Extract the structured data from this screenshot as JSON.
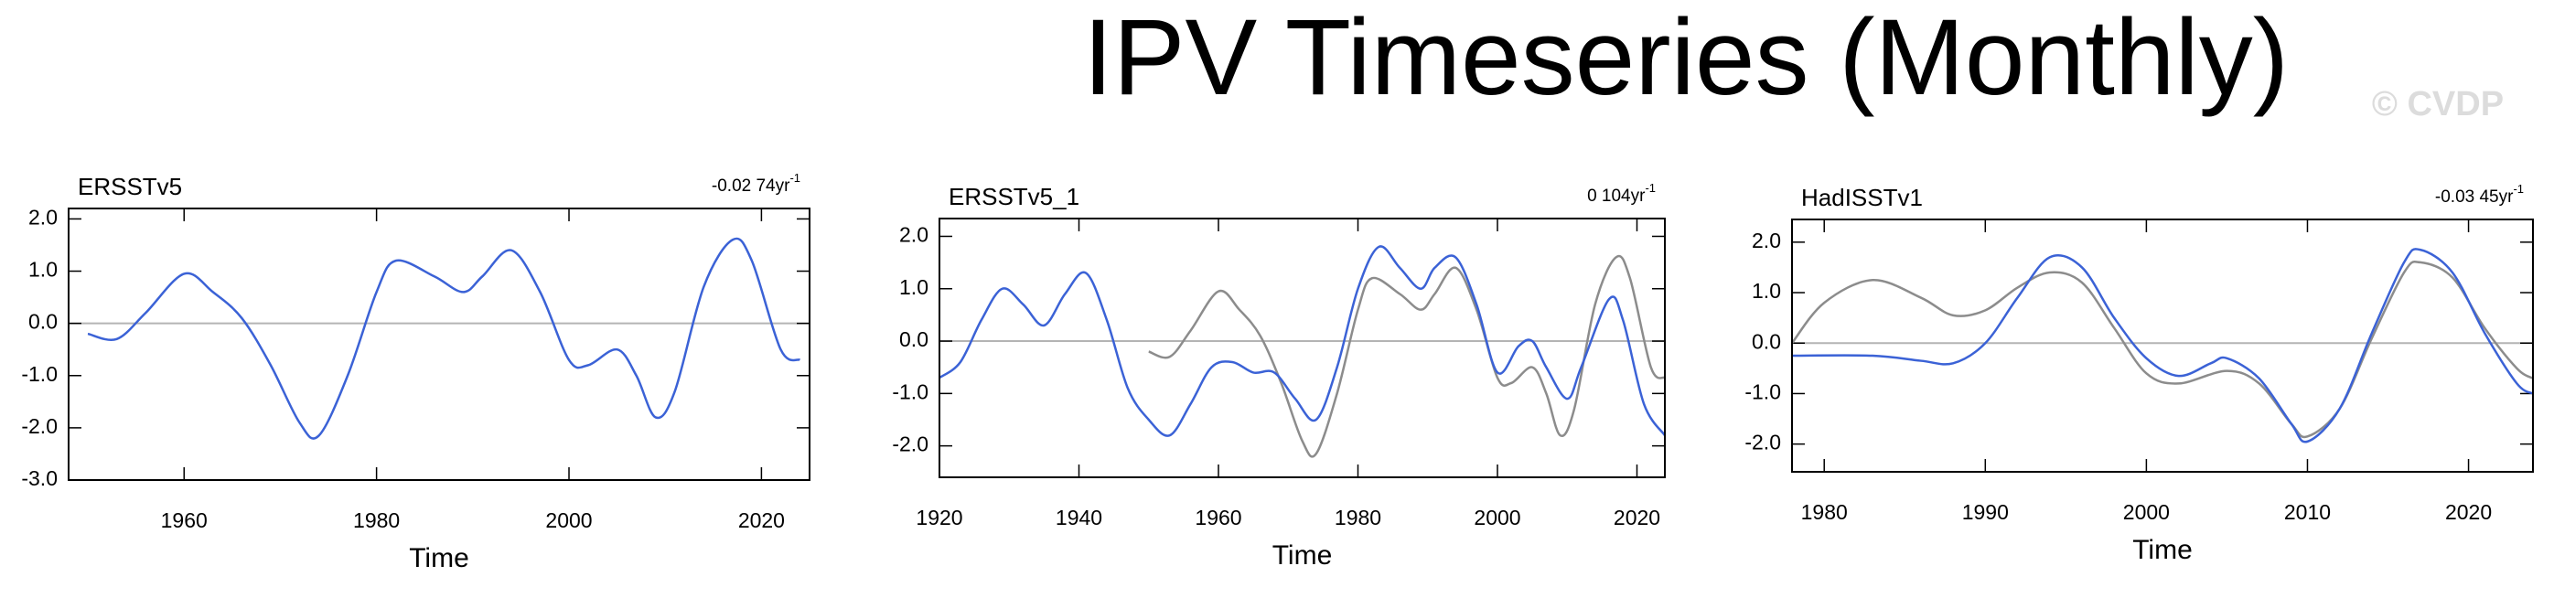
{
  "title": "IPV Timeseries (Monthly)",
  "watermark": "© CVDP",
  "chart_data": [
    {
      "type": "line",
      "title": "ERSSTv5",
      "trend": "-0.02 74yr",
      "trend_exp": "-1",
      "xlabel": "Time",
      "xlim": [
        1948,
        2025
      ],
      "xticks": [
        1960,
        1980,
        2000,
        2020
      ],
      "ylim": [
        -3,
        2.2
      ],
      "yticks": [
        {
          "value": 2,
          "label": "2.0"
        },
        {
          "value": 1,
          "label": "1.0"
        },
        {
          "value": 0,
          "label": "0.0"
        },
        {
          "value": -1,
          "label": "-1.0"
        },
        {
          "value": -2,
          "label": "-2.0"
        },
        {
          "value": -3,
          "label": "-3.0"
        }
      ],
      "zero_line": true,
      "series": [
        {
          "color": "#3b62d6",
          "x": [
            1950,
            1953,
            1956,
            1960,
            1963,
            1966,
            1969,
            1972,
            1974,
            1977,
            1980,
            1982,
            1986,
            1989,
            1991,
            1994,
            1997,
            2000,
            2002,
            2005,
            2007,
            2009,
            2011,
            2014,
            2017,
            2019,
            2022,
            2024
          ],
          "values": [
            -0.2,
            -0.3,
            0.2,
            0.95,
            0.6,
            0.1,
            -0.8,
            -1.9,
            -2.15,
            -1.0,
            0.6,
            1.2,
            0.9,
            0.6,
            0.9,
            1.4,
            0.6,
            -0.7,
            -0.8,
            -0.5,
            -1.0,
            -1.8,
            -1.3,
            0.7,
            1.6,
            1.2,
            -0.5,
            -0.7
          ]
        }
      ]
    },
    {
      "type": "line",
      "title": "ERSSTv5_1",
      "trend": "0 104yr",
      "trend_exp": "-1",
      "xlabel": "Time",
      "xlim": [
        1920,
        2024
      ],
      "xticks": [
        1920,
        1940,
        1960,
        1980,
        2000,
        2020
      ],
      "ylim": [
        -2.6,
        2.34
      ],
      "yticks": [
        {
          "value": 2,
          "label": "2.0"
        },
        {
          "value": 1,
          "label": "1.0"
        },
        {
          "value": 0,
          "label": "0.0"
        },
        {
          "value": -1,
          "label": "-1.0"
        },
        {
          "value": -2,
          "label": "-2.0"
        }
      ],
      "zero_line": true,
      "series": [
        {
          "color": "#8c8c8c",
          "x": [
            1950,
            1953,
            1956,
            1960,
            1963,
            1966,
            1969,
            1972,
            1974,
            1977,
            1980,
            1982,
            1986,
            1989,
            1991,
            1994,
            1997,
            2000,
            2002,
            2005,
            2007,
            2009,
            2011,
            2014,
            2017,
            2019,
            2022,
            2024
          ],
          "values": [
            -0.2,
            -0.3,
            0.2,
            0.95,
            0.6,
            0.1,
            -0.8,
            -1.9,
            -2.15,
            -1.0,
            0.6,
            1.2,
            0.9,
            0.6,
            0.9,
            1.4,
            0.6,
            -0.7,
            -0.8,
            -0.5,
            -1.0,
            -1.8,
            -1.3,
            0.7,
            1.6,
            1.2,
            -0.5,
            -0.7
          ]
        },
        {
          "color": "#3b62d6",
          "x": [
            1920,
            1923,
            1926,
            1929,
            1932,
            1935,
            1938,
            1941,
            1944,
            1947,
            1950,
            1953,
            1956,
            1959,
            1962,
            1965,
            1968,
            1971,
            1974,
            1977,
            1980,
            1983,
            1986,
            1989,
            1991,
            1994,
            1997,
            2000,
            2003,
            2005,
            2007,
            2010,
            2012,
            2016,
            2018,
            2021,
            2024
          ],
          "values": [
            -0.7,
            -0.4,
            0.4,
            1.0,
            0.7,
            0.3,
            0.9,
            1.3,
            0.4,
            -0.9,
            -1.5,
            -1.8,
            -1.2,
            -0.5,
            -0.4,
            -0.6,
            -0.6,
            -1.1,
            -1.5,
            -0.5,
            1.0,
            1.8,
            1.4,
            1.0,
            1.4,
            1.6,
            0.7,
            -0.6,
            -0.1,
            0.0,
            -0.5,
            -1.1,
            -0.5,
            0.8,
            0.4,
            -1.2,
            -1.8
          ]
        }
      ]
    },
    {
      "type": "line",
      "title": "HadISSTv1",
      "trend": "-0.03 45yr",
      "trend_exp": "-1",
      "xlabel": "Time",
      "xlim": [
        1978,
        2024
      ],
      "xticks": [
        1980,
        1990,
        2000,
        2010,
        2020
      ],
      "ylim": [
        -2.55,
        2.45
      ],
      "yticks": [
        {
          "value": 2,
          "label": "2.0"
        },
        {
          "value": 1,
          "label": "1.0"
        },
        {
          "value": 0,
          "label": "0.0"
        },
        {
          "value": -1,
          "label": "-1.0"
        },
        {
          "value": -2,
          "label": "-2.0"
        }
      ],
      "zero_line": true,
      "series": [
        {
          "color": "#8c8c8c",
          "x": [
            1978,
            1980,
            1983,
            1986,
            1988,
            1990,
            1992,
            1994,
            1996,
            1998,
            2000,
            2002,
            2005,
            2007,
            2009,
            2010,
            2012,
            2014,
            2016,
            2017,
            2019,
            2021,
            2023,
            2024
          ],
          "values": [
            0.0,
            0.8,
            1.25,
            0.9,
            0.55,
            0.65,
            1.1,
            1.4,
            1.2,
            0.3,
            -0.6,
            -0.8,
            -0.55,
            -0.8,
            -1.6,
            -1.85,
            -1.3,
            0.1,
            1.4,
            1.6,
            1.3,
            0.3,
            -0.5,
            -0.7
          ]
        },
        {
          "color": "#3b62d6",
          "x": [
            1978,
            1983,
            1986,
            1988,
            1990,
            1992,
            1994,
            1996,
            1998,
            2000,
            2002,
            2004,
            2005,
            2007,
            2009,
            2010,
            2012,
            2014,
            2016,
            2017,
            2019,
            2021,
            2023,
            2024
          ],
          "values": [
            -0.25,
            -0.25,
            -0.35,
            -0.4,
            0.0,
            0.9,
            1.7,
            1.5,
            0.5,
            -0.3,
            -0.65,
            -0.4,
            -0.3,
            -0.7,
            -1.6,
            -1.95,
            -1.3,
            0.2,
            1.6,
            1.85,
            1.4,
            0.2,
            -0.8,
            -1.0
          ]
        }
      ]
    }
  ]
}
